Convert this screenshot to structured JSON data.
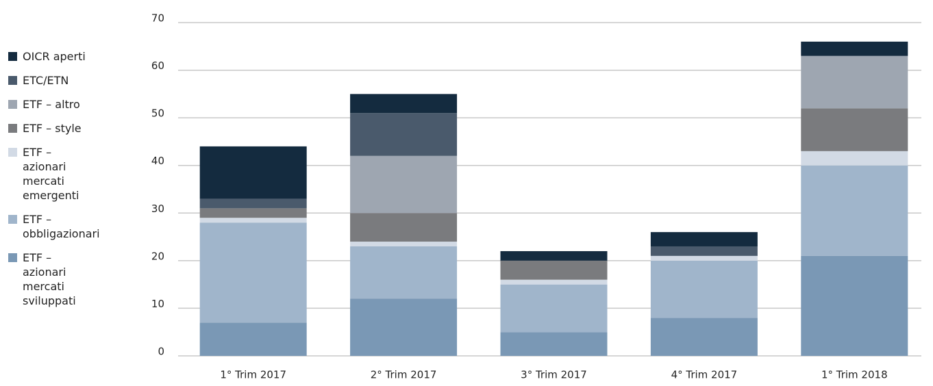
{
  "chart_data": {
    "type": "stacked_bar",
    "categories": [
      "1° Trim 2017",
      "2° Trim 2017",
      "3° Trim 2017",
      "4° Trim 2017",
      "1° Trim 2018"
    ],
    "series": [
      {
        "name": "ETF – azionari mercati sviluppati",
        "color": "#7a98b5",
        "values": [
          7,
          12,
          5,
          8,
          21
        ]
      },
      {
        "name": "ETF – obbligazionari",
        "color": "#a0b5cb",
        "values": [
          21,
          11,
          10,
          12,
          19
        ]
      },
      {
        "name": "ETF – azionari mercati emergenti",
        "color": "#d2dae5",
        "values": [
          1,
          1,
          1,
          1,
          3
        ]
      },
      {
        "name": "ETF – style",
        "color": "#7a7b7e",
        "values": [
          2,
          6,
          4,
          0,
          9
        ]
      },
      {
        "name": "ETF – altro",
        "color": "#9ea6b1",
        "values": [
          0,
          12,
          0,
          0,
          11
        ]
      },
      {
        "name": "ETC/ETN",
        "color": "#4a5a6c",
        "values": [
          2,
          9,
          0,
          2,
          0
        ]
      },
      {
        "name": "OICR aperti",
        "color": "#142b3f",
        "values": [
          11,
          4,
          2,
          3,
          3
        ]
      }
    ],
    "ylim": [
      0,
      70
    ],
    "yticks": [
      0,
      10,
      20,
      30,
      40,
      50,
      60,
      70
    ],
    "grid": true,
    "legend": "left"
  }
}
